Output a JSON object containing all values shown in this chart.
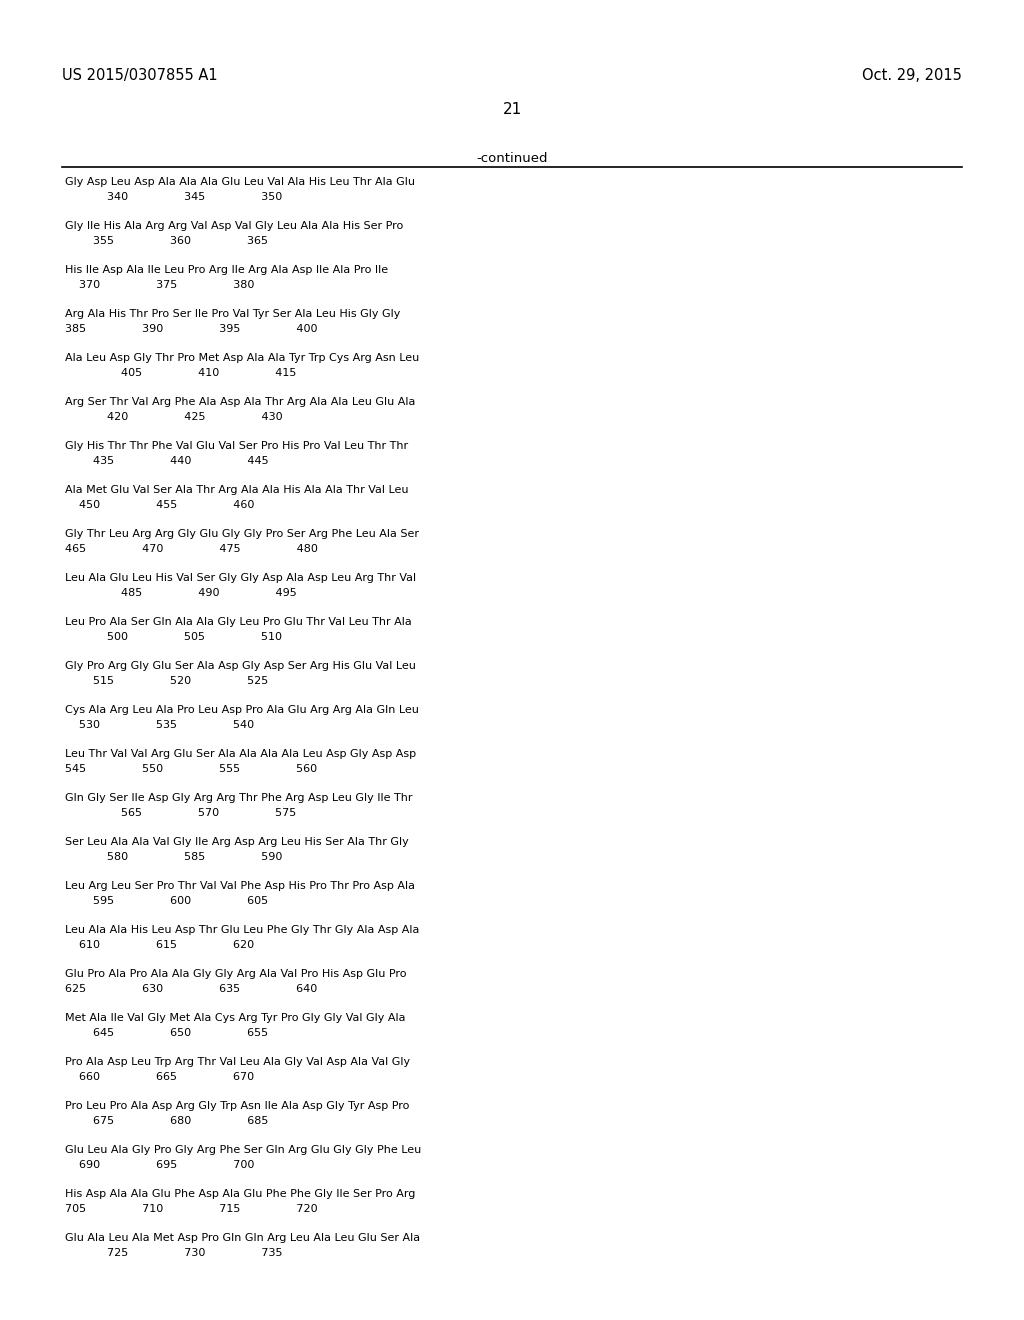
{
  "header_left": "US 2015/0307855 A1",
  "header_right": "Oct. 29, 2015",
  "page_number": "21",
  "continued_label": "-continued",
  "background_color": "#ffffff",
  "text_color": "#000000",
  "sequence_blocks": [
    [
      "Gly Asp Leu Asp Ala Ala Ala Glu Leu Val Ala His Leu Thr Ala Glu",
      "            340                345                350"
    ],
    [
      "Gly Ile His Ala Arg Arg Val Asp Val Gly Leu Ala Ala His Ser Pro",
      "        355                360                365"
    ],
    [
      "His Ile Asp Ala Ile Leu Pro Arg Ile Arg Ala Asp Ile Ala Pro Ile",
      "    370                375                380"
    ],
    [
      "Arg Ala His Thr Pro Ser Ile Pro Val Tyr Ser Ala Leu His Gly Gly",
      "385                390                395                400"
    ],
    [
      "Ala Leu Asp Gly Thr Pro Met Asp Ala Ala Tyr Trp Cys Arg Asn Leu",
      "                405                410                415"
    ],
    [
      "Arg Ser Thr Val Arg Phe Ala Asp Ala Thr Arg Ala Ala Leu Glu Ala",
      "            420                425                430"
    ],
    [
      "Gly His Thr Thr Phe Val Glu Val Ser Pro His Pro Val Leu Thr Thr",
      "        435                440                445"
    ],
    [
      "Ala Met Glu Val Ser Ala Thr Arg Ala Ala His Ala Ala Thr Val Leu",
      "    450                455                460"
    ],
    [
      "Gly Thr Leu Arg Arg Gly Glu Gly Gly Pro Ser Arg Phe Leu Ala Ser",
      "465                470                475                480"
    ],
    [
      "Leu Ala Glu Leu His Val Ser Gly Gly Asp Ala Asp Leu Arg Thr Val",
      "                485                490                495"
    ],
    [
      "Leu Pro Ala Ser Gln Ala Ala Gly Leu Pro Glu Thr Val Leu Thr Ala",
      "            500                505                510"
    ],
    [
      "Gly Pro Arg Gly Glu Ser Ala Asp Gly Asp Ser Arg His Glu Val Leu",
      "        515                520                525"
    ],
    [
      "Cys Ala Arg Leu Ala Pro Leu Asp Pro Ala Glu Arg Arg Ala Gln Leu",
      "    530                535                540"
    ],
    [
      "Leu Thr Val Val Arg Glu Ser Ala Ala Ala Ala Leu Asp Gly Asp Asp",
      "545                550                555                560"
    ],
    [
      "Gln Gly Ser Ile Asp Gly Arg Arg Thr Phe Arg Asp Leu Gly Ile Thr",
      "                565                570                575"
    ],
    [
      "Ser Leu Ala Ala Val Gly Ile Arg Asp Arg Leu His Ser Ala Thr Gly",
      "            580                585                590"
    ],
    [
      "Leu Arg Leu Ser Pro Thr Val Val Phe Asp His Pro Thr Pro Asp Ala",
      "        595                600                605"
    ],
    [
      "Leu Ala Ala His Leu Asp Thr Glu Leu Phe Gly Thr Gly Ala Asp Ala",
      "    610                615                620"
    ],
    [
      "Glu Pro Ala Pro Ala Ala Gly Gly Arg Ala Val Pro His Asp Glu Pro",
      "625                630                635                640"
    ],
    [
      "Met Ala Ile Val Gly Met Ala Cys Arg Tyr Pro Gly Gly Val Gly Ala",
      "        645                650                655"
    ],
    [
      "Pro Ala Asp Leu Trp Arg Thr Val Leu Ala Gly Val Asp Ala Val Gly",
      "    660                665                670"
    ],
    [
      "Pro Leu Pro Ala Asp Arg Gly Trp Asn Ile Ala Asp Gly Tyr Asp Pro",
      "        675                680                685"
    ],
    [
      "Glu Leu Ala Gly Pro Gly Arg Phe Ser Gln Arg Glu Gly Gly Phe Leu",
      "    690                695                700"
    ],
    [
      "His Asp Ala Ala Glu Phe Asp Ala Glu Phe Phe Gly Ile Ser Pro Arg",
      "705                710                715                720"
    ],
    [
      "Glu Ala Leu Ala Met Asp Pro Gln Gln Arg Leu Ala Leu Glu Ser Ala",
      "            725                730                735"
    ]
  ]
}
